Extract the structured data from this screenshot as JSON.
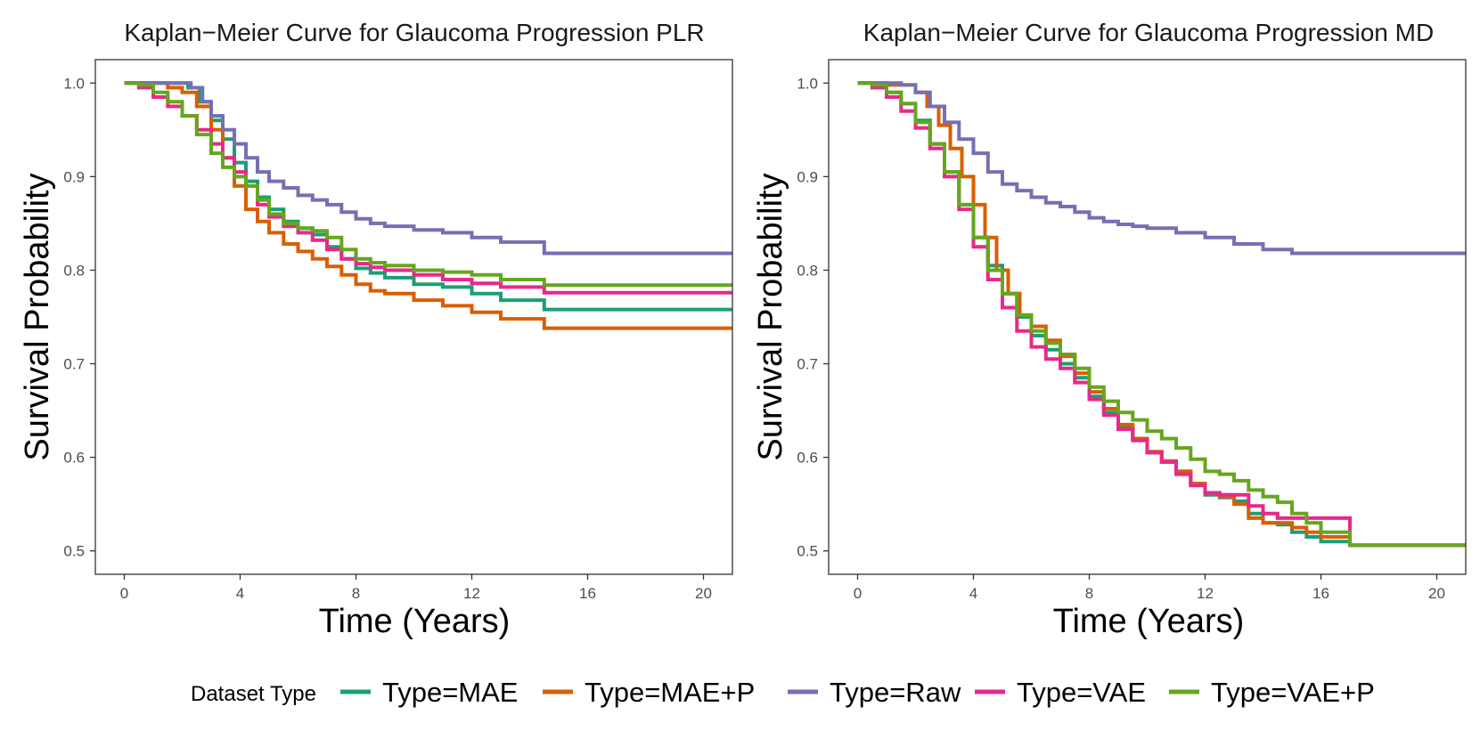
{
  "chart_data": [
    {
      "type": "line",
      "step": true,
      "title": "Kaplan−Meier Curve for Glaucoma Progression PLR",
      "xlabel": "Time (Years)",
      "ylabel": "Survival Probability",
      "xlim": [
        -1,
        21
      ],
      "ylim": [
        0.475,
        1.025
      ],
      "xticks": [
        0,
        4,
        8,
        12,
        16,
        20
      ],
      "yticks": [
        0.5,
        0.6,
        0.7,
        0.8,
        0.9,
        1.0
      ],
      "xtick_labels": [
        "0",
        "4",
        "8",
        "12",
        "16",
        "20"
      ],
      "ytick_labels": [
        "0.5",
        "0.6",
        "0.7",
        "0.8",
        "0.9",
        "1.0"
      ],
      "series": [
        {
          "name": "Type=MAE",
          "x": [
            0,
            2.2,
            2.6,
            3.0,
            3.4,
            3.8,
            4.2,
            4.6,
            5.0,
            5.5,
            6.0,
            6.5,
            7.0,
            7.5,
            8.0,
            8.5,
            9.0,
            10.0,
            11.0,
            12.0,
            13.0,
            14.5,
            21
          ],
          "y": [
            1.0,
            0.995,
            0.98,
            0.96,
            0.94,
            0.915,
            0.895,
            0.878,
            0.865,
            0.852,
            0.845,
            0.838,
            0.825,
            0.812,
            0.802,
            0.797,
            0.792,
            0.785,
            0.782,
            0.775,
            0.768,
            0.758,
            0.758
          ]
        },
        {
          "name": "Type=MAE+P",
          "x": [
            0,
            1.5,
            2.0,
            2.5,
            3.0,
            3.4,
            3.8,
            4.2,
            4.6,
            5.0,
            5.5,
            6.0,
            6.5,
            7.0,
            7.5,
            8.0,
            8.5,
            9.0,
            10.0,
            11.0,
            12.0,
            13.0,
            14.5,
            21
          ],
          "y": [
            1.0,
            0.995,
            0.99,
            0.975,
            0.95,
            0.92,
            0.89,
            0.865,
            0.852,
            0.84,
            0.828,
            0.82,
            0.812,
            0.804,
            0.795,
            0.785,
            0.778,
            0.775,
            0.768,
            0.762,
            0.755,
            0.748,
            0.738,
            0.738
          ]
        },
        {
          "name": "Type=Raw",
          "x": [
            0,
            2.3,
            2.7,
            3.0,
            3.4,
            3.8,
            4.2,
            4.6,
            5.0,
            5.5,
            6.0,
            6.5,
            7.0,
            7.5,
            8.0,
            8.5,
            9.0,
            10.0,
            11.0,
            12.0,
            13.0,
            14.5,
            21
          ],
          "y": [
            1.0,
            0.995,
            0.98,
            0.965,
            0.95,
            0.935,
            0.92,
            0.905,
            0.895,
            0.888,
            0.88,
            0.875,
            0.87,
            0.862,
            0.855,
            0.85,
            0.847,
            0.843,
            0.84,
            0.835,
            0.83,
            0.818,
            0.818
          ]
        },
        {
          "name": "Type=VAE",
          "x": [
            0,
            0.5,
            1.0,
            1.5,
            2.0,
            2.5,
            3.0,
            3.4,
            3.8,
            4.2,
            4.6,
            5.0,
            5.5,
            6.0,
            6.5,
            7.0,
            7.5,
            8.0,
            8.5,
            9.0,
            10.0,
            11.0,
            12.0,
            13.0,
            14.5,
            21
          ],
          "y": [
            1.0,
            0.995,
            0.985,
            0.975,
            0.965,
            0.95,
            0.935,
            0.92,
            0.905,
            0.89,
            0.87,
            0.857,
            0.847,
            0.84,
            0.832,
            0.822,
            0.812,
            0.807,
            0.803,
            0.8,
            0.795,
            0.79,
            0.786,
            0.782,
            0.776,
            0.776
          ]
        },
        {
          "name": "Type=VAE+P",
          "x": [
            0,
            0.5,
            1.0,
            1.5,
            2.0,
            2.5,
            3.0,
            3.4,
            3.8,
            4.2,
            4.6,
            5.0,
            5.5,
            6.0,
            6.5,
            7.0,
            7.5,
            8.0,
            8.5,
            9.0,
            10.0,
            11.0,
            12.0,
            13.0,
            14.5,
            21
          ],
          "y": [
            1.0,
            0.998,
            0.99,
            0.98,
            0.965,
            0.945,
            0.925,
            0.91,
            0.9,
            0.89,
            0.875,
            0.86,
            0.85,
            0.845,
            0.842,
            0.835,
            0.822,
            0.812,
            0.808,
            0.805,
            0.8,
            0.798,
            0.795,
            0.79,
            0.784,
            0.784
          ]
        }
      ]
    },
    {
      "type": "line",
      "step": true,
      "title": "Kaplan−Meier Curve for Glaucoma Progression MD",
      "xlabel": "Time (Years)",
      "ylabel": "Survival Probability",
      "xlim": [
        -1,
        21
      ],
      "ylim": [
        0.475,
        1.025
      ],
      "xticks": [
        0,
        4,
        8,
        12,
        16,
        20
      ],
      "yticks": [
        0.5,
        0.6,
        0.7,
        0.8,
        0.9,
        1.0
      ],
      "xtick_labels": [
        "0",
        "4",
        "8",
        "12",
        "16",
        "20"
      ],
      "ytick_labels": [
        "0.5",
        "0.6",
        "0.7",
        "0.8",
        "0.9",
        "1.0"
      ],
      "series": [
        {
          "name": "Type=MAE",
          "x": [
            0,
            0.5,
            1.0,
            1.5,
            2.0,
            2.5,
            3.0,
            3.5,
            4.0,
            4.5,
            5.0,
            5.5,
            6.0,
            6.5,
            7.0,
            7.5,
            8.0,
            8.5,
            9.0,
            9.5,
            10.0,
            10.5,
            11.0,
            11.5,
            12.0,
            12.5,
            13.0,
            13.5,
            14.0,
            14.5,
            15.0,
            15.5,
            16.0,
            17.0,
            21
          ],
          "y": [
            1.0,
            0.998,
            0.99,
            0.978,
            0.96,
            0.935,
            0.905,
            0.87,
            0.835,
            0.805,
            0.775,
            0.75,
            0.73,
            0.715,
            0.7,
            0.685,
            0.665,
            0.648,
            0.632,
            0.62,
            0.605,
            0.595,
            0.585,
            0.572,
            0.56,
            0.557,
            0.553,
            0.54,
            0.53,
            0.528,
            0.52,
            0.515,
            0.51,
            0.506,
            0.506
          ]
        },
        {
          "name": "Type=MAE+P",
          "x": [
            0,
            1.0,
            2.0,
            2.4,
            2.8,
            3.2,
            3.6,
            4.0,
            4.4,
            4.8,
            5.2,
            5.6,
            6.0,
            6.5,
            7.0,
            7.5,
            8.0,
            8.5,
            9.0,
            9.5,
            10.0,
            10.5,
            11.0,
            11.5,
            12.0,
            12.5,
            13.0,
            13.5,
            14.0,
            14.5,
            15.0,
            15.5,
            16.0,
            17.0,
            21
          ],
          "y": [
            1.0,
            0.998,
            0.99,
            0.975,
            0.955,
            0.93,
            0.9,
            0.87,
            0.835,
            0.8,
            0.775,
            0.752,
            0.74,
            0.725,
            0.708,
            0.69,
            0.67,
            0.652,
            0.635,
            0.62,
            0.606,
            0.596,
            0.585,
            0.572,
            0.562,
            0.558,
            0.55,
            0.535,
            0.53,
            0.53,
            0.525,
            0.52,
            0.515,
            0.506,
            0.506
          ]
        },
        {
          "name": "Type=Raw",
          "x": [
            0,
            1.5,
            2.0,
            2.5,
            3.0,
            3.5,
            4.0,
            4.5,
            5.0,
            5.5,
            6.0,
            6.5,
            7.0,
            7.5,
            8.0,
            8.5,
            9.0,
            9.5,
            10.0,
            11.0,
            12.0,
            13.0,
            14.0,
            15.0,
            21
          ],
          "y": [
            1.0,
            0.998,
            0.99,
            0.975,
            0.958,
            0.94,
            0.925,
            0.905,
            0.892,
            0.885,
            0.878,
            0.872,
            0.868,
            0.862,
            0.856,
            0.852,
            0.849,
            0.847,
            0.845,
            0.84,
            0.835,
            0.828,
            0.822,
            0.818,
            0.818
          ]
        },
        {
          "name": "Type=VAE",
          "x": [
            0,
            0.5,
            1.0,
            1.5,
            2.0,
            2.5,
            3.0,
            3.5,
            4.0,
            4.5,
            5.0,
            5.5,
            6.0,
            6.5,
            7.0,
            7.5,
            8.0,
            8.5,
            9.0,
            9.5,
            10.0,
            10.5,
            11.0,
            11.5,
            12.0,
            12.5,
            13.0,
            13.5,
            14.0,
            14.5,
            15.0,
            15.5,
            16.0,
            17.0,
            21
          ],
          "y": [
            1.0,
            0.995,
            0.985,
            0.97,
            0.952,
            0.93,
            0.9,
            0.865,
            0.825,
            0.79,
            0.76,
            0.735,
            0.718,
            0.705,
            0.695,
            0.68,
            0.662,
            0.645,
            0.63,
            0.618,
            0.605,
            0.595,
            0.582,
            0.57,
            0.562,
            0.56,
            0.56,
            0.548,
            0.54,
            0.535,
            0.535,
            0.535,
            0.535,
            0.506,
            0.506
          ]
        },
        {
          "name": "Type=VAE+P",
          "x": [
            0,
            0.5,
            1.0,
            1.5,
            2.0,
            2.5,
            3.0,
            3.5,
            4.0,
            4.5,
            5.0,
            5.5,
            6.0,
            6.5,
            7.0,
            7.5,
            8.0,
            8.5,
            9.0,
            9.5,
            10.0,
            10.5,
            11.0,
            11.5,
            12.0,
            12.5,
            13.0,
            13.5,
            14.0,
            14.5,
            15.0,
            15.5,
            16.0,
            17.0,
            21
          ],
          "y": [
            1.0,
            0.998,
            0.99,
            0.978,
            0.958,
            0.935,
            0.905,
            0.87,
            0.835,
            0.8,
            0.775,
            0.752,
            0.735,
            0.722,
            0.71,
            0.695,
            0.675,
            0.66,
            0.648,
            0.64,
            0.628,
            0.62,
            0.61,
            0.598,
            0.585,
            0.582,
            0.575,
            0.565,
            0.558,
            0.552,
            0.54,
            0.53,
            0.52,
            0.506,
            0.506
          ]
        }
      ]
    }
  ],
  "legend": {
    "title": "Dataset Type",
    "position": "bottom",
    "items": [
      {
        "label": "Type=MAE",
        "color": "#1b9e77"
      },
      {
        "label": "Type=MAE+P",
        "color": "#d95f02"
      },
      {
        "label": "Type=Raw",
        "color": "#7570b3"
      },
      {
        "label": "Type=VAE",
        "color": "#e7298a"
      },
      {
        "label": "Type=VAE+P",
        "color": "#66a61e"
      }
    ]
  },
  "colors": {
    "Type=MAE": "#1b9e77",
    "Type=MAE+P": "#d95f02",
    "Type=Raw": "#7570b3",
    "Type=VAE": "#e7298a",
    "Type=VAE+P": "#66a61e",
    "panel_border": "#333333",
    "tick_text": "#4d4d4d"
  }
}
